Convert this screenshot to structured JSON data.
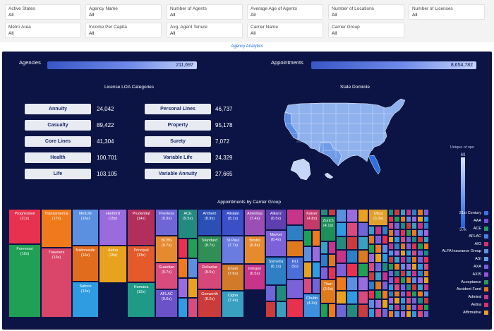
{
  "filters": [
    {
      "label": "Active States",
      "value": "All"
    },
    {
      "label": "Agency Name",
      "value": "All"
    },
    {
      "label": "Number of Agents",
      "value": "All"
    },
    {
      "label": "Average Age of Agents",
      "value": "All"
    },
    {
      "label": "Number of Locations",
      "value": "All"
    },
    {
      "label": "Number of Licenses",
      "value": "All"
    },
    {
      "label": "Metro Area",
      "value": "All"
    },
    {
      "label": "Income Per Capita",
      "value": "All"
    },
    {
      "label": "Avg. Agent Tenure",
      "value": "All"
    },
    {
      "label": "Carrier Name",
      "value": "All"
    },
    {
      "label": "Carrier Group",
      "value": "All"
    }
  ],
  "nav_title": "Agency Analytics",
  "kpis": {
    "agencies_label": "Agencies",
    "agencies_value": "211,697",
    "appointments_label": "Appointments",
    "appointments_value": "8,654,782"
  },
  "lob": {
    "title": "License LOA Categories",
    "items": [
      {
        "label": "Annuity",
        "value": "24,042"
      },
      {
        "label": "Casualty",
        "value": "89,422"
      },
      {
        "label": "Core Lines",
        "value": "41,304"
      },
      {
        "label": "Health",
        "value": "100,701"
      },
      {
        "label": "Life",
        "value": "103,105"
      },
      {
        "label": "Personal Lines",
        "value": "46,737"
      },
      {
        "label": "Property",
        "value": "95,178"
      },
      {
        "label": "Surety",
        "value": "7,072"
      },
      {
        "label": "Variable Life",
        "value": "24,329"
      },
      {
        "label": "Variable Annuity",
        "value": "27,665"
      }
    ]
  },
  "map": {
    "title": "State Domicile",
    "legend_title": "Unique of npn",
    "legend_max": "69",
    "legend_min": "37k"
  },
  "treemap_title": "Appointments by Carrier Group",
  "chart_data": {
    "type": "treemap",
    "title": "Appointments by Carrier Group",
    "tiles": [
      {
        "label": "Progressive",
        "value": "(21x)",
        "color": "#e8304f"
      },
      {
        "label": "Foremost",
        "value": "(10x)",
        "color": "#1fa055"
      },
      {
        "label": "Transamerica",
        "value": "(17x)",
        "color": "#f07a1b"
      },
      {
        "label": "Travelers",
        "value": "(16x)",
        "color": "#d9466a"
      },
      {
        "label": "MetLife",
        "value": "(16x)",
        "color": "#5b8fe0"
      },
      {
        "label": "Nationwide",
        "value": "(16x)",
        "color": "#e26c1d"
      },
      {
        "label": "Safeco",
        "value": "(16x)",
        "color": "#2f9be0"
      },
      {
        "label": "Hartford",
        "value": "(15x)",
        "color": "#9a6bdc"
      },
      {
        "label": "Aetna",
        "value": "(15x)",
        "color": "#e9a21d"
      },
      {
        "label": "Prudential",
        "value": "(14x)",
        "color": "#b12f5a"
      },
      {
        "label": "Principal",
        "value": "(13x)",
        "color": "#e45a2a"
      },
      {
        "label": "Humana",
        "value": "(12x)",
        "color": "#1f9a86"
      },
      {
        "label": "Peerless",
        "value": "(9.9x)",
        "color": "#6e66d6"
      },
      {
        "label": "BCBS",
        "value": "(9.7x)",
        "color": "#e58a2e"
      },
      {
        "label": "Guardian",
        "value": "(9.7x)",
        "color": "#d84b7c"
      },
      {
        "label": "AFLAC",
        "value": "(9.6x)",
        "color": "#6b52c8"
      },
      {
        "label": "ACE",
        "value": "(9.5x)",
        "color": "#238a7e"
      },
      {
        "label": "Anthem",
        "value": "(8.9x)",
        "color": "#2c4fb6"
      },
      {
        "label": "Standard",
        "value": "(8.7x)",
        "color": "#2f8f55"
      },
      {
        "label": "Reliastar",
        "value": "(8.5x)",
        "color": "#d6477a"
      },
      {
        "label": "Genworth",
        "value": "(8.2x)",
        "color": "#cc3b3b"
      },
      {
        "label": "Allstate",
        "value": "(8.1x)",
        "color": "#3b4fc8"
      },
      {
        "label": "St Paul",
        "value": "(7.7x)",
        "color": "#6b7ce0"
      },
      {
        "label": "Unum",
        "value": "(7.6x)",
        "color": "#d07a2a"
      },
      {
        "label": "Cigna",
        "value": "(7.4x)",
        "color": "#3aa0c2"
      },
      {
        "label": "Ameritas",
        "value": "(7.4x)",
        "color": "#9b4fb5"
      },
      {
        "label": "Bristol",
        "value": "(6.8x)",
        "color": "#e68a2e"
      },
      {
        "label": "Integon",
        "value": "(6.5x)",
        "color": "#c8348a"
      },
      {
        "label": "Allianz",
        "value": "(6.5x)",
        "color": "#5d3fb0"
      },
      {
        "label": "Market",
        "value": "(6.4x)",
        "color": "#7b62d8"
      },
      {
        "label": "Symetra",
        "value": "(6.1x)",
        "color": "#2e7fc4"
      },
      {
        "label": "RLI",
        "value": "(5x)",
        "color": "#4b6fd8"
      },
      {
        "label": "Kaiser",
        "value": "(4.8x)",
        "color": "#c43b6b"
      },
      {
        "label": "Chubb",
        "value": "(4.3x)",
        "color": "#3f8fe0"
      },
      {
        "label": "Zurich",
        "value": "(4.1x)",
        "color": "#1f8f5a"
      },
      {
        "label": "Titan",
        "value": "(3.6x)",
        "color": "#e07a1d"
      },
      {
        "label": "Utica",
        "value": "(3.3x)",
        "color": "#e0a02a"
      }
    ],
    "legend": [
      {
        "label": "21st Century",
        "color": "#3d6fe0"
      },
      {
        "label": "AAA",
        "color": "#7a4fd0"
      },
      {
        "label": "ACE",
        "color": "#2a9a6a"
      },
      {
        "label": "AFLAC",
        "color": "#4b7fe0"
      },
      {
        "label": "AIG",
        "color": "#d8306a"
      },
      {
        "label": "ALFA Insurance Group",
        "color": "#5b8fe0"
      },
      {
        "label": "ASI",
        "color": "#5fa0e8"
      },
      {
        "label": "AXA",
        "color": "#7a5fd8"
      },
      {
        "label": "AXIS",
        "color": "#9a50d8"
      },
      {
        "label": "Acceptance",
        "color": "#2a9a5a"
      },
      {
        "label": "Accident Fund",
        "color": "#e07a1d"
      },
      {
        "label": "Admiral",
        "color": "#c23b8a"
      },
      {
        "label": "Aetna",
        "color": "#d82f6f"
      },
      {
        "label": "Affirmative",
        "color": "#e8a02a"
      }
    ]
  }
}
